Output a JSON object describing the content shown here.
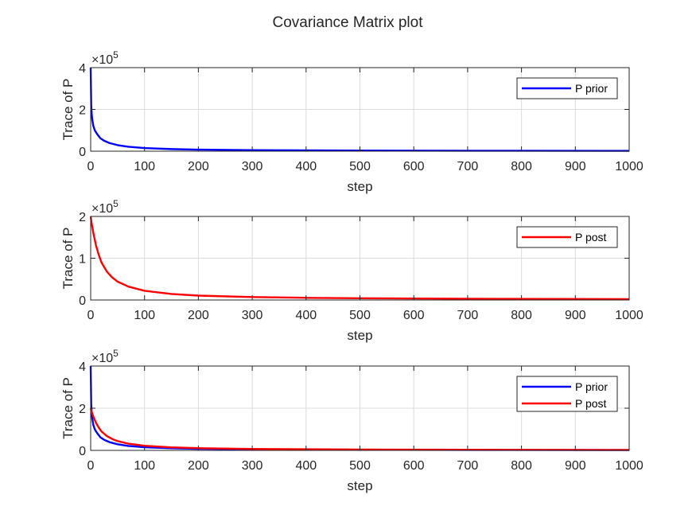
{
  "figure": {
    "title": "Covariance Matrix plot"
  },
  "colors": {
    "prior": "#0000ff",
    "post": "#ff0000",
    "grid": "#dcdcdc",
    "axis": "#262626"
  },
  "chart_data": [
    {
      "type": "line",
      "xlabel": "step",
      "ylabel": "Trace of P",
      "y_exponent_label": "×10",
      "y_exponent_power": "5",
      "xlim": [
        0,
        1000
      ],
      "ylim": [
        0,
        4
      ],
      "x_ticks": [
        "0",
        "100",
        "200",
        "300",
        "400",
        "500",
        "600",
        "700",
        "800",
        "900",
        "1000"
      ],
      "y_ticks": [
        "0",
        "2",
        "4"
      ],
      "grid": true,
      "legend_position": "top-right",
      "series": [
        {
          "name": "P prior",
          "color": "#0000ff",
          "x": [
            0,
            1,
            2,
            3,
            5,
            8,
            12,
            18,
            25,
            35,
            50,
            70,
            100,
            150,
            200,
            300,
            400,
            500,
            700,
            1000
          ],
          "y": [
            4.0,
            2.2,
            1.75,
            1.5,
            1.2,
            0.98,
            0.82,
            0.62,
            0.5,
            0.39,
            0.29,
            0.21,
            0.15,
            0.1,
            0.075,
            0.05,
            0.04,
            0.03,
            0.022,
            0.016
          ]
        }
      ]
    },
    {
      "type": "line",
      "xlabel": "step",
      "ylabel": "Trace of P",
      "y_exponent_label": "×10",
      "y_exponent_power": "5",
      "xlim": [
        0,
        1000
      ],
      "ylim": [
        0,
        2
      ],
      "x_ticks": [
        "0",
        "100",
        "200",
        "300",
        "400",
        "500",
        "600",
        "700",
        "800",
        "900",
        "1000"
      ],
      "y_ticks": [
        "0",
        "1",
        "2"
      ],
      "grid": true,
      "legend_position": "top-right",
      "series": [
        {
          "name": "P post",
          "color": "#ff0000",
          "x": [
            0,
            2,
            5,
            10,
            15,
            20,
            30,
            40,
            50,
            70,
            100,
            150,
            200,
            300,
            400,
            500,
            700,
            1000
          ],
          "y": [
            2.0,
            1.82,
            1.6,
            1.3,
            1.08,
            0.9,
            0.68,
            0.54,
            0.44,
            0.32,
            0.22,
            0.145,
            0.105,
            0.07,
            0.052,
            0.042,
            0.03,
            0.021
          ]
        }
      ]
    },
    {
      "type": "line",
      "xlabel": "step",
      "ylabel": "Trace of P",
      "y_exponent_label": "×10",
      "y_exponent_power": "5",
      "xlim": [
        0,
        1000
      ],
      "ylim": [
        0,
        4
      ],
      "x_ticks": [
        "0",
        "100",
        "200",
        "300",
        "400",
        "500",
        "600",
        "700",
        "800",
        "900",
        "1000"
      ],
      "y_ticks": [
        "0",
        "2",
        "4"
      ],
      "grid": true,
      "legend_position": "top-right",
      "series": [
        {
          "name": "P prior",
          "color": "#0000ff",
          "x": [
            0,
            1,
            2,
            3,
            5,
            8,
            12,
            18,
            25,
            35,
            50,
            70,
            100,
            150,
            200,
            300,
            400,
            500,
            700,
            1000
          ],
          "y": [
            4.0,
            2.2,
            1.75,
            1.5,
            1.2,
            0.98,
            0.82,
            0.62,
            0.5,
            0.39,
            0.29,
            0.21,
            0.15,
            0.1,
            0.075,
            0.05,
            0.04,
            0.03,
            0.022,
            0.016
          ]
        },
        {
          "name": "P post",
          "color": "#ff0000",
          "x": [
            0,
            2,
            5,
            10,
            15,
            20,
            30,
            40,
            50,
            70,
            100,
            150,
            200,
            300,
            400,
            500,
            700,
            1000
          ],
          "y": [
            2.0,
            1.82,
            1.6,
            1.3,
            1.08,
            0.9,
            0.68,
            0.54,
            0.44,
            0.32,
            0.22,
            0.145,
            0.105,
            0.07,
            0.052,
            0.042,
            0.03,
            0.021
          ]
        }
      ]
    }
  ]
}
